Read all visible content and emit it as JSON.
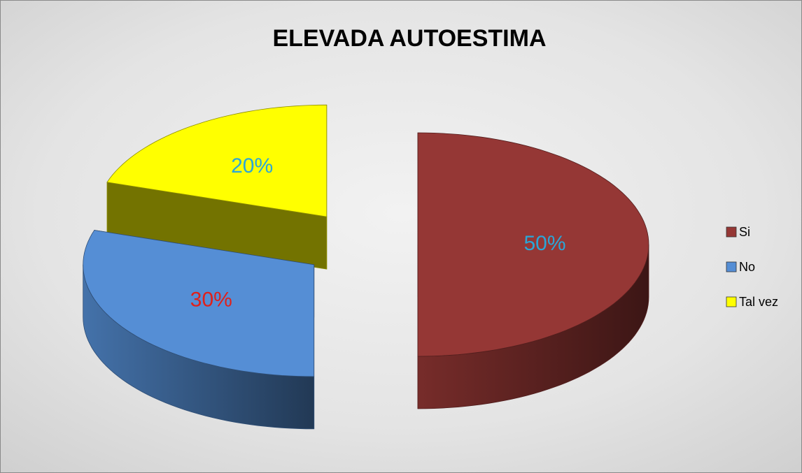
{
  "chart_data": {
    "type": "pie3d",
    "title": "ELEVADA AUTOESTIMA",
    "categories": [
      "Si",
      "No",
      "Tal vez"
    ],
    "values": [
      50,
      30,
      20
    ],
    "value_labels": [
      "50%",
      "30%",
      "20%"
    ],
    "colors": [
      "#953735",
      "#558ed5",
      "#ffff00"
    ],
    "value_label_colors": [
      "#2aa6d8",
      "#e0201a",
      "#2aa6d8"
    ],
    "legend": "right"
  }
}
